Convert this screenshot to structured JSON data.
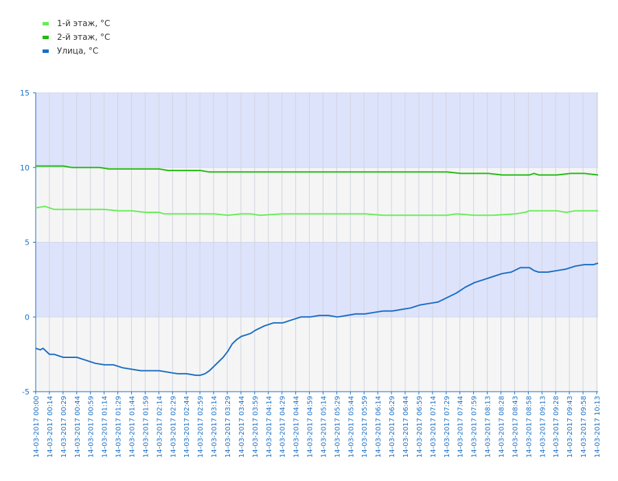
{
  "chart_data": {
    "type": "line",
    "legend_position": "top-left",
    "grid": true,
    "ylim": [
      -5,
      15
    ],
    "yticks": [
      -5,
      0,
      5,
      10,
      15
    ],
    "band_colors": [
      "#f5f5f5",
      "#dde3fb"
    ],
    "axis_color": "#1a6ec4",
    "x_start": "00:00",
    "x_end": "10:15",
    "x_tick_labels": [
      "14-03-2017 00:00",
      "14-03-2017 00:14",
      "14-03-2017 00:29",
      "14-03-2017 00:44",
      "14-03-2017 00:59",
      "14-03-2017 01:14",
      "14-03-2017 01:29",
      "14-03-2017 01:44",
      "14-03-2017 01:59",
      "14-03-2017 02:14",
      "14-03-2017 02:29",
      "14-03-2017 02:44",
      "14-03-2017 02:59",
      "14-03-2017 03:14",
      "14-03-2017 03:29",
      "14-03-2017 03:44",
      "14-03-2017 03:59",
      "14-03-2017 04:14",
      "14-03-2017 04:29",
      "14-03-2017 04:44",
      "14-03-2017 04:59",
      "14-03-2017 05:14",
      "14-03-2017 05:29",
      "14-03-2017 05:44",
      "14-03-2017 05:59",
      "14-03-2017 06:14",
      "14-03-2017 06:29",
      "14-03-2017 06:44",
      "14-03-2017 06:59",
      "14-03-2017 07:14",
      "14-03-2017 07:29",
      "14-03-2017 07:44",
      "14-03-2017 07:59",
      "14-03-2017 08:13",
      "14-03-2017 08:28",
      "14-03-2017 08:43",
      "14-03-2017 08:58",
      "14-03-2017 09:13",
      "14-03-2017 09:28",
      "14-03-2017 09:43",
      "14-03-2017 09:58",
      "14-03-2017 10:13"
    ],
    "series": [
      {
        "name": "1-й этаж, °C",
        "color": "#66ee55",
        "x": [
          "00:00",
          "00:10",
          "00:20",
          "00:45",
          "01:00",
          "01:15",
          "01:30",
          "01:45",
          "02:00",
          "02:15",
          "02:20",
          "02:45",
          "03:00",
          "03:15",
          "03:30",
          "03:45",
          "03:55",
          "04:05",
          "04:30",
          "05:00",
          "05:30",
          "06:00",
          "06:20",
          "06:45",
          "07:00",
          "07:20",
          "07:30",
          "07:40",
          "08:00",
          "08:20",
          "08:45",
          "08:55",
          "09:00",
          "09:15",
          "09:30",
          "09:40",
          "09:50",
          "10:00",
          "10:15"
        ],
        "values": [
          7.3,
          7.4,
          7.2,
          7.2,
          7.2,
          7.2,
          7.1,
          7.1,
          7.0,
          7.0,
          6.9,
          6.9,
          6.9,
          6.9,
          6.8,
          6.9,
          6.9,
          6.8,
          6.9,
          6.9,
          6.9,
          6.9,
          6.8,
          6.8,
          6.8,
          6.8,
          6.8,
          6.9,
          6.8,
          6.8,
          6.9,
          7.0,
          7.1,
          7.1,
          7.1,
          7.0,
          7.1,
          7.1,
          7.1
        ]
      },
      {
        "name": "2-й этаж, °C",
        "color": "#22bb11",
        "x": [
          "00:00",
          "00:30",
          "00:40",
          "01:10",
          "01:20",
          "02:15",
          "02:25",
          "03:00",
          "03:10",
          "04:00",
          "05:00",
          "06:00",
          "07:00",
          "07:30",
          "07:45",
          "08:15",
          "08:30",
          "09:00",
          "09:05",
          "09:10",
          "09:30",
          "09:45",
          "10:00",
          "10:15"
        ],
        "values": [
          10.1,
          10.1,
          10.0,
          10.0,
          9.9,
          9.9,
          9.8,
          9.8,
          9.7,
          9.7,
          9.7,
          9.7,
          9.7,
          9.7,
          9.6,
          9.6,
          9.5,
          9.5,
          9.6,
          9.5,
          9.5,
          9.6,
          9.6,
          9.5
        ]
      },
      {
        "name": "Улица, °C",
        "color": "#1a6ec4",
        "x": [
          "00:00",
          "00:05",
          "00:08",
          "00:15",
          "00:20",
          "00:30",
          "00:45",
          "00:55",
          "01:05",
          "01:15",
          "01:25",
          "01:35",
          "01:45",
          "01:55",
          "02:05",
          "02:15",
          "02:25",
          "02:35",
          "02:45",
          "02:55",
          "03:00",
          "03:05",
          "03:10",
          "03:15",
          "03:20",
          "03:25",
          "03:30",
          "03:35",
          "03:40",
          "03:45",
          "03:50",
          "03:55",
          "04:00",
          "04:10",
          "04:20",
          "04:30",
          "04:40",
          "04:50",
          "05:00",
          "05:10",
          "05:20",
          "05:30",
          "05:40",
          "05:50",
          "06:00",
          "06:10",
          "06:20",
          "06:30",
          "06:40",
          "06:50",
          "07:00",
          "07:10",
          "07:20",
          "07:30",
          "07:40",
          "07:50",
          "08:00",
          "08:10",
          "08:20",
          "08:30",
          "08:40",
          "08:50",
          "09:00",
          "09:05",
          "09:10",
          "09:20",
          "09:30",
          "09:40",
          "09:50",
          "10:00",
          "10:10",
          "10:15"
        ],
        "values": [
          -2.1,
          -2.2,
          -2.1,
          -2.5,
          -2.5,
          -2.7,
          -2.7,
          -2.9,
          -3.1,
          -3.2,
          -3.2,
          -3.4,
          -3.5,
          -3.6,
          -3.6,
          -3.6,
          -3.7,
          -3.8,
          -3.8,
          -3.9,
          -3.9,
          -3.8,
          -3.6,
          -3.3,
          -3.0,
          -2.7,
          -2.3,
          -1.8,
          -1.5,
          -1.3,
          -1.2,
          -1.1,
          -0.9,
          -0.6,
          -0.4,
          -0.4,
          -0.2,
          0.0,
          0.0,
          0.1,
          0.1,
          0.0,
          0.1,
          0.2,
          0.2,
          0.3,
          0.4,
          0.4,
          0.5,
          0.6,
          0.8,
          0.9,
          1.0,
          1.3,
          1.6,
          2.0,
          2.3,
          2.5,
          2.7,
          2.9,
          3.0,
          3.3,
          3.3,
          3.1,
          3.0,
          3.0,
          3.1,
          3.2,
          3.4,
          3.5,
          3.5,
          3.6
        ]
      }
    ]
  }
}
